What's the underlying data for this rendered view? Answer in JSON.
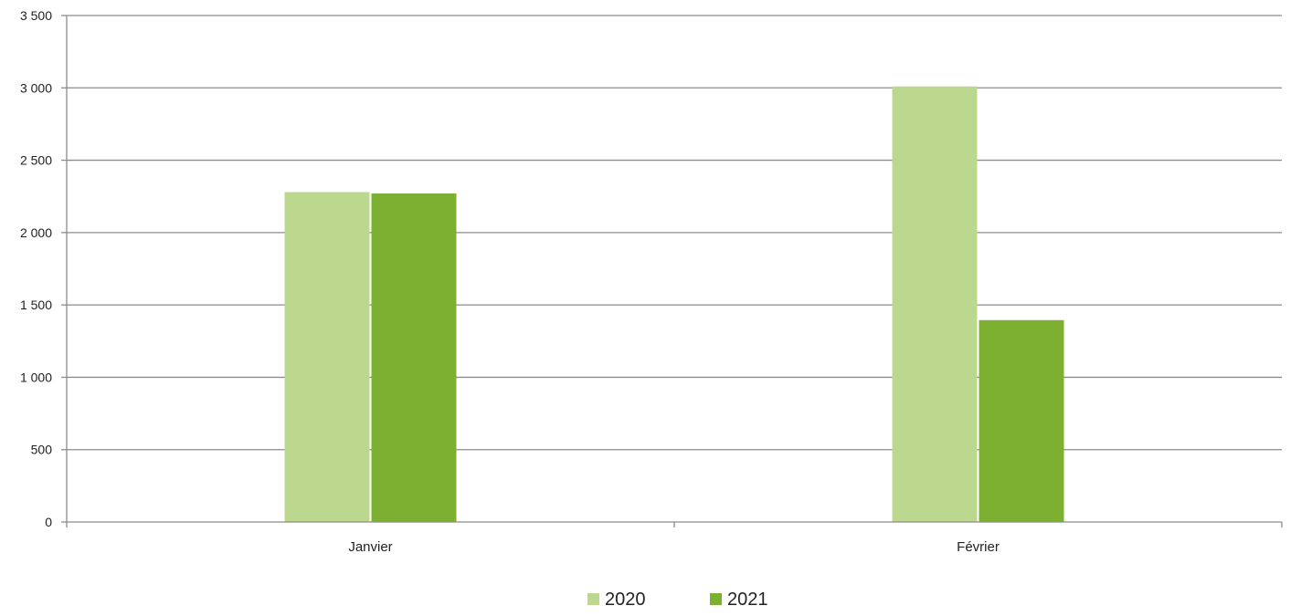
{
  "chart_data": {
    "type": "bar",
    "categories": [
      "Janvier",
      "Février"
    ],
    "series": [
      {
        "name": "2020",
        "values": [
          2280,
          3010
        ],
        "color": "#bcd88f"
      },
      {
        "name": "2021",
        "values": [
          2270,
          1395
        ],
        "color": "#7db031"
      }
    ],
    "y_ticks": [
      "0",
      "500",
      "1 000",
      "1 500",
      "2 000",
      "2 500",
      "3 000",
      "3 500"
    ],
    "ylim": [
      0,
      3500
    ],
    "y_step": 500,
    "grid": true,
    "legend_position": "bottom-center",
    "title": "",
    "xlabel": "",
    "ylabel": ""
  }
}
